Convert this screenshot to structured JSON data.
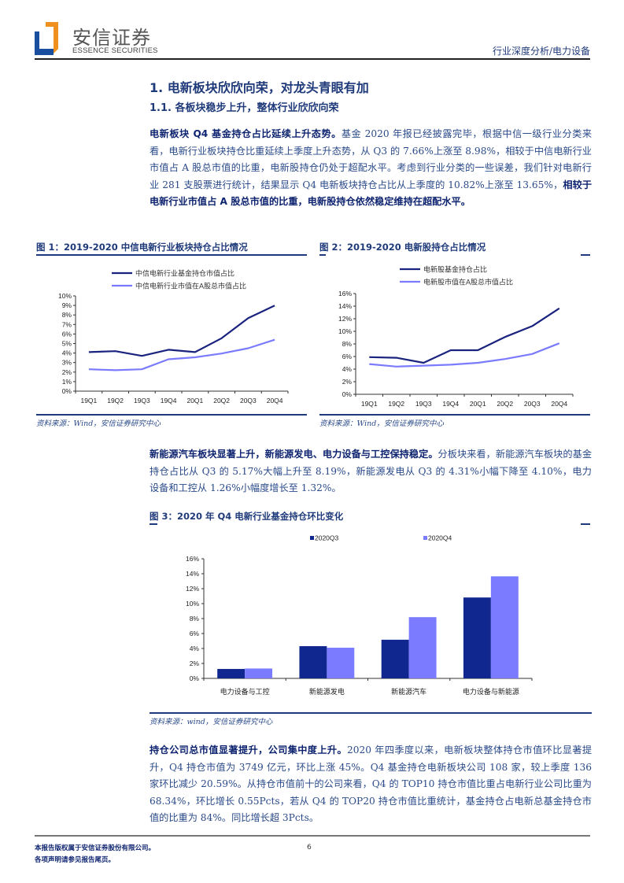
{
  "header": {
    "brand_cn": "安信证券",
    "brand_en": "ESSENCE SECURITIES",
    "category": "行业深度分析/电力设备",
    "colors": {
      "logo_blue": "#1a4fa0",
      "logo_orange": "#f0901e"
    }
  },
  "section": {
    "h1": "1. 电新板块欣欣向荣，对龙头青眼有加",
    "h2": "1.1. 各板块稳步上升，整体行业欣欣向荣"
  },
  "paragraphs": {
    "p1": {
      "lead": "电新板块 Q4 基金持仓占比延续上升态势。",
      "body": "基金 2020 年报已经披露完毕，根据中信一级行业分类来看，电新行业板块持仓比重延续上季度上升态势，从 Q3 的 7.66%上涨至 8.98%，相较于中信电新行业市值占 A 股总市值的比重，电新股持仓仍处于超配水平。考虑到行业分类的一些误差，我们针对电新行业 281 支股票进行统计，结果显示 Q4 电新板块持仓占比从上季度的 10.82%上涨至 13.65%，",
      "tail": "相较于电新行业市值占 A 股总市值的比重，电新股持仓依然稳定维持在超配水平。"
    },
    "p2": {
      "lead": "新能源汽车板块显著上升，新能源发电、电力设备与工控保持稳定。",
      "body": "分板块来看，新能源汽车板块的基金持仓占比从 Q3 的 5.17%大幅上升至 8.19%，新能源发电从 Q3 的 4.31%小幅下降至 4.10%，电力设备和工控从 1.26%小幅度增长至 1.32%。"
    },
    "p3": {
      "lead": "持仓公司总市值显著提升，公司集中度上升。",
      "body": "2020 年四季度以来，电新板块整体持仓市值环比显著提升，Q4 持仓市值为 3749 亿元，环比上涨 45%。Q4 基金持仓电新板块公司 108 家，较上季度 136 家环比减少 20.59%。从持仓市值前十的公司来看，Q4 的 TOP10 持仓市值比重占电新行业公司比重为 68.34%，环比增长 0.55Pcts，若从 Q4 的 TOP20 持仓市值比重统计，基金持仓占电新总基金持仓市值的比重为 84%。同比增长超 3Pcts。"
    }
  },
  "figures": {
    "fig1": {
      "title": "图 1：2019-2020 中信电新行业板块持仓占比情况",
      "source": "资料来源：Wind，安信证券研究中心"
    },
    "fig2": {
      "title": "图 2：2019-2020 电新股持仓占比情况",
      "source": "资料来源：Wind，安信证券研究中心"
    },
    "fig3": {
      "title": "图 3：2020 年 Q4 电新行业基金持仓环比变化",
      "source": "资料来源：wind，安信证券研究中心"
    }
  },
  "chart_data": [
    {
      "type": "line",
      "title": "2019-2020 中信电新行业板块持仓占比情况",
      "categories": [
        "19Q1",
        "19Q2",
        "19Q3",
        "19Q4",
        "20Q1",
        "20Q2",
        "20Q3",
        "20Q4"
      ],
      "series": [
        {
          "name": "中信电新行业基金持仓市值占比",
          "color": "#1a237e",
          "values": [
            4.1,
            4.2,
            3.7,
            4.35,
            4.1,
            5.55,
            7.66,
            8.98
          ]
        },
        {
          "name": "中信电新行业市值在A股总市值占比",
          "color": "#7b7bff",
          "values": [
            2.3,
            2.2,
            2.3,
            3.35,
            3.55,
            3.95,
            4.5,
            5.4
          ]
        }
      ],
      "yticks": [
        "0%",
        "1%",
        "2%",
        "3%",
        "4%",
        "5%",
        "6%",
        "7%",
        "8%",
        "9%",
        "10%"
      ],
      "ylim": [
        0,
        10
      ],
      "xlabel": "",
      "ylabel": "",
      "grid": false,
      "legend_position": "top"
    },
    {
      "type": "line",
      "title": "2019-2020 电新股持仓占比情况",
      "categories": [
        "19Q1",
        "19Q2",
        "19Q3",
        "19Q4",
        "20Q1",
        "20Q2",
        "20Q3",
        "20Q4"
      ],
      "series": [
        {
          "name": "电新股基金持仓占比",
          "color": "#1a237e",
          "values": [
            5.9,
            5.8,
            5.0,
            7.0,
            7.0,
            9.1,
            10.82,
            13.65
          ]
        },
        {
          "name": "电新股市值在A股总市值占比",
          "color": "#7b7bff",
          "values": [
            4.8,
            4.4,
            4.55,
            4.7,
            5.0,
            5.6,
            6.4,
            8.1
          ]
        }
      ],
      "yticks": [
        "0%",
        "2%",
        "4%",
        "6%",
        "8%",
        "10%",
        "12%",
        "14%",
        "16%"
      ],
      "ylim": [
        0,
        16
      ],
      "xlabel": "",
      "ylabel": "",
      "grid": false,
      "legend_position": "top"
    },
    {
      "type": "bar",
      "title": "2020 年 Q4 电新行业基金持仓环比变化",
      "categories": [
        "电力设备与工控",
        "新能源发电",
        "新能源汽车",
        "电力设备与新能源"
      ],
      "series": [
        {
          "name": "2020Q3",
          "color": "#10278f",
          "values": [
            1.26,
            4.31,
            5.17,
            10.82
          ]
        },
        {
          "name": "2020Q4",
          "color": "#7b7bff",
          "values": [
            1.32,
            4.1,
            8.19,
            13.65
          ]
        }
      ],
      "yticks": [
        "0%",
        "2%",
        "4%",
        "6%",
        "8%",
        "10%",
        "12%",
        "14%",
        "16%"
      ],
      "ylim": [
        0,
        16
      ],
      "xlabel": "",
      "ylabel": "",
      "grid": false,
      "legend_position": "top"
    }
  ],
  "footer": {
    "line1": "本报告版权属于安信证券股份有限公司。",
    "line2": "各项声明请参见报告尾页。",
    "page_number": "6"
  }
}
